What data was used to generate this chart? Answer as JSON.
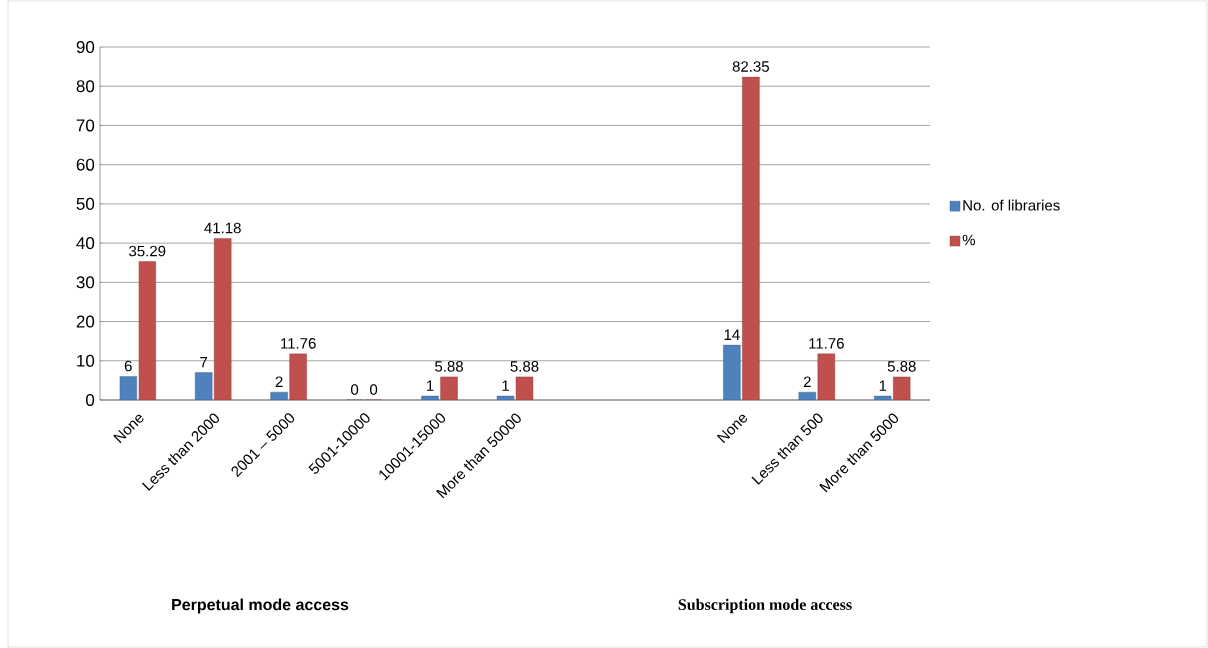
{
  "chart_data": {
    "type": "bar",
    "categories": [
      "None",
      "Less than 2000",
      "2001 – 5000",
      "5001-10000",
      "10001-15000",
      "More than 50000",
      null,
      null,
      "None",
      "Less than 500",
      "More than 5000"
    ],
    "series": [
      {
        "name": "No. of libraries",
        "color": "#4f81bd",
        "values": [
          6,
          7,
          2,
          0,
          1,
          1,
          null,
          null,
          14,
          2,
          1
        ]
      },
      {
        "name": "%",
        "color": "#c0504d",
        "values": [
          35.29,
          41.18,
          11.76,
          0,
          5.88,
          5.88,
          null,
          null,
          82.35,
          11.76,
          5.88
        ]
      }
    ],
    "ylim": [
      0,
      90
    ],
    "yticks": [
      0,
      10,
      20,
      30,
      40,
      50,
      60,
      70,
      80,
      90
    ],
    "grid": "y",
    "legend": "right",
    "data_labels": true,
    "annotations": [
      "Perpetual mode access",
      "Subscription mode access"
    ]
  }
}
